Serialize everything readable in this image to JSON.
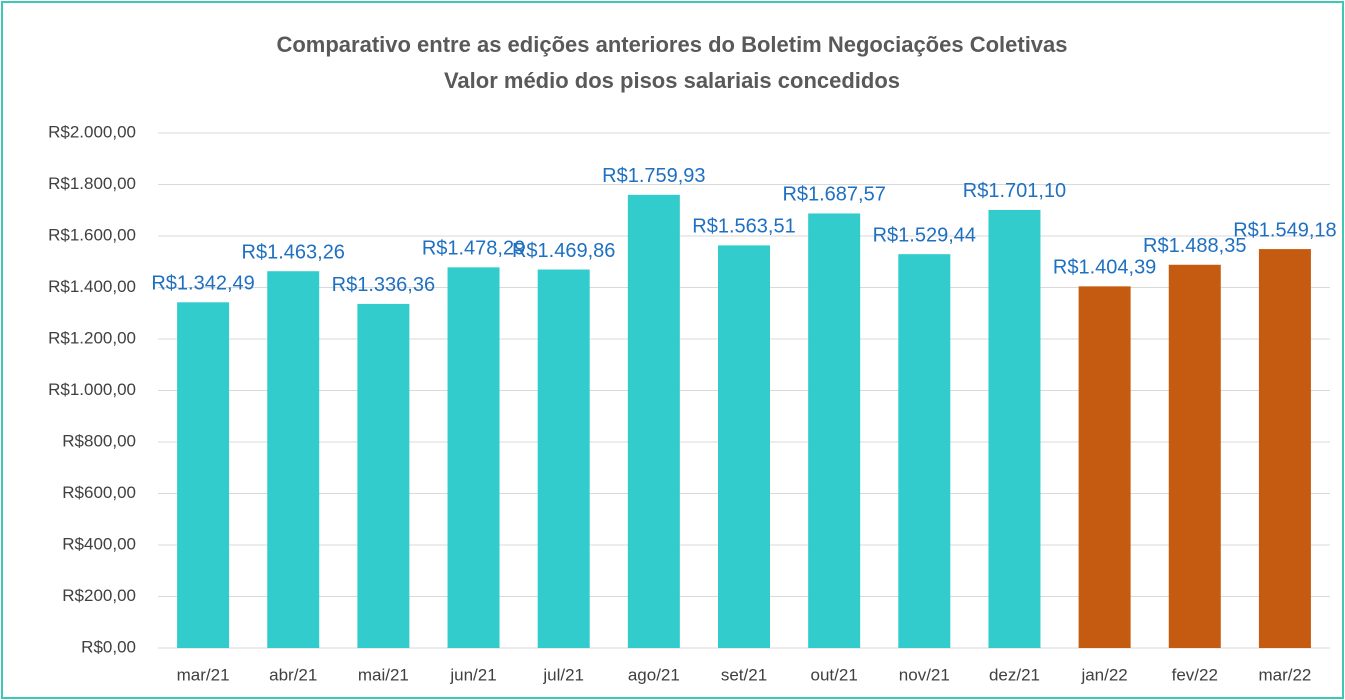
{
  "chart_data": {
    "type": "bar",
    "title": "Comparativo entre as edições anteriores do Boletim Negociações Coletivas",
    "subtitle": "Valor médio dos pisos salariais concedidos",
    "categories": [
      "mar/21",
      "abr/21",
      "mai/21",
      "jun/21",
      "jul/21",
      "ago/21",
      "set/21",
      "out/21",
      "nov/21",
      "dez/21",
      "jan/22",
      "fev/22",
      "mar/22"
    ],
    "values": [
      1342.49,
      1463.26,
      1336.36,
      1478.29,
      1469.86,
      1759.93,
      1563.51,
      1687.57,
      1529.44,
      1701.1,
      1404.39,
      1488.35,
      1549.18
    ],
    "value_labels": [
      "R$1.342,49",
      "R$1.463,26",
      "R$1.336,36",
      "R$1.478,29",
      "R$1.469,86",
      "R$1.759,93",
      "R$1.563,51",
      "R$1.687,57",
      "R$1.529,44",
      "R$1.701,10",
      "R$1.404,39",
      "R$1.488,35",
      "R$1.549,18"
    ],
    "colors": [
      "#33cccc",
      "#33cccc",
      "#33cccc",
      "#33cccc",
      "#33cccc",
      "#33cccc",
      "#33cccc",
      "#33cccc",
      "#33cccc",
      "#33cccc",
      "#c55a11",
      "#c55a11",
      "#c55a11"
    ],
    "ylim": [
      0,
      2000
    ],
    "yticks": [
      {
        "value": 0,
        "label": "R$0,00"
      },
      {
        "value": 200,
        "label": "R$200,00"
      },
      {
        "value": 400,
        "label": "R$400,00"
      },
      {
        "value": 600,
        "label": "R$600,00"
      },
      {
        "value": 800,
        "label": "R$800,00"
      },
      {
        "value": 1000,
        "label": "R$1.000,00"
      },
      {
        "value": 1200,
        "label": "R$1.200,00"
      },
      {
        "value": 1400,
        "label": "R$1.400,00"
      },
      {
        "value": 1600,
        "label": "R$1.600,00"
      },
      {
        "value": 1800,
        "label": "R$1.800,00"
      },
      {
        "value": 2000,
        "label": "R$2.000,00"
      }
    ],
    "grid": true
  }
}
